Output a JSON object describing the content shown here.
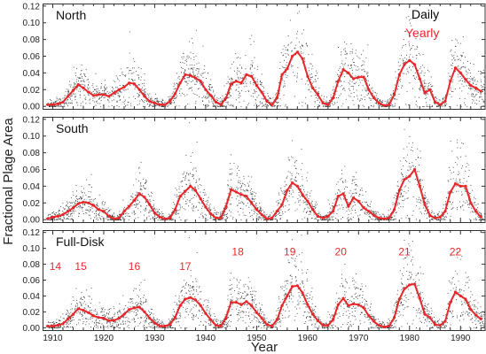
{
  "chart_data": {
    "type": "scatter",
    "xlabel": "Year",
    "ylabel": "Fractional Plage Area",
    "xlim": [
      1908,
      1995
    ],
    "x_ticks": [
      1910,
      1920,
      1930,
      1940,
      1950,
      1960,
      1970,
      1980,
      1990
    ],
    "x_tick_labels": [
      "1910",
      "1920",
      "1930",
      "1940",
      "1950",
      "1960",
      "1970",
      "1980",
      "1990"
    ],
    "ylim": [
      -0.003,
      0.123
    ],
    "y_ticks": [
      0.0,
      0.02,
      0.04,
      0.06,
      0.08,
      0.1,
      0.12
    ],
    "y_tick_labels": [
      "0.00",
      "0.02",
      "0.04",
      "0.06",
      "0.08",
      "0.10",
      "0.12"
    ],
    "grid": false,
    "legend_position": "top-right",
    "legend": [
      {
        "label": "Daily",
        "color": "#000000"
      },
      {
        "label": "Yearly",
        "color": "#e8272b"
      }
    ],
    "colors": {
      "daily": "#333333",
      "yearly": "#e8272b",
      "cycle_label": "#e8272b"
    },
    "yearly_x": [
      1909,
      1910,
      1911,
      1912,
      1913,
      1914,
      1915,
      1916,
      1917,
      1918,
      1919,
      1920,
      1921,
      1922,
      1923,
      1924,
      1925,
      1926,
      1927,
      1928,
      1929,
      1930,
      1931,
      1932,
      1933,
      1934,
      1935,
      1936,
      1937,
      1938,
      1939,
      1940,
      1941,
      1942,
      1943,
      1944,
      1945,
      1946,
      1947,
      1948,
      1949,
      1950,
      1951,
      1952,
      1953,
      1954,
      1955,
      1956,
      1957,
      1958,
      1959,
      1960,
      1961,
      1962,
      1963,
      1964,
      1965,
      1966,
      1967,
      1968,
      1969,
      1970,
      1971,
      1972,
      1973,
      1974,
      1975,
      1976,
      1977,
      1978,
      1979,
      1980,
      1981,
      1982,
      1983,
      1984,
      1985,
      1986,
      1987,
      1988,
      1989,
      1990,
      1991,
      1992,
      1993,
      1994
    ],
    "panels": [
      {
        "title": "North",
        "yearly_values": [
          0.002,
          0.002,
          0.003,
          0.005,
          0.012,
          0.019,
          0.026,
          0.022,
          0.017,
          0.013,
          0.014,
          0.014,
          0.012,
          0.016,
          0.02,
          0.023,
          0.028,
          0.027,
          0.02,
          0.012,
          0.006,
          0.004,
          0.002,
          0.002,
          0.006,
          0.015,
          0.028,
          0.038,
          0.037,
          0.034,
          0.03,
          0.02,
          0.013,
          0.005,
          0.002,
          0.01,
          0.027,
          0.03,
          0.028,
          0.038,
          0.036,
          0.025,
          0.017,
          0.006,
          0.002,
          0.01,
          0.038,
          0.045,
          0.06,
          0.065,
          0.057,
          0.036,
          0.022,
          0.014,
          0.004,
          0.002,
          0.01,
          0.03,
          0.044,
          0.04,
          0.033,
          0.035,
          0.035,
          0.02,
          0.01,
          0.004,
          0.001,
          0.002,
          0.014,
          0.038,
          0.05,
          0.055,
          0.05,
          0.033,
          0.016,
          0.02,
          0.005,
          0.002,
          0.006,
          0.03,
          0.046,
          0.04,
          0.032,
          0.025,
          0.022,
          0.018
        ]
      },
      {
        "title": "South",
        "yearly_values": [
          0.001,
          0.003,
          0.004,
          0.006,
          0.01,
          0.014,
          0.019,
          0.021,
          0.02,
          0.017,
          0.012,
          0.01,
          0.004,
          0.001,
          0.002,
          0.01,
          0.016,
          0.023,
          0.031,
          0.027,
          0.018,
          0.008,
          0.003,
          0.001,
          0.002,
          0.012,
          0.028,
          0.034,
          0.04,
          0.035,
          0.025,
          0.015,
          0.007,
          0.002,
          0.002,
          0.016,
          0.036,
          0.033,
          0.03,
          0.028,
          0.02,
          0.012,
          0.006,
          0.001,
          0.002,
          0.01,
          0.018,
          0.035,
          0.044,
          0.04,
          0.03,
          0.022,
          0.012,
          0.004,
          0.002,
          0.004,
          0.01,
          0.028,
          0.031,
          0.016,
          0.026,
          0.022,
          0.014,
          0.01,
          0.005,
          0.002,
          0.001,
          0.002,
          0.012,
          0.035,
          0.048,
          0.052,
          0.06,
          0.04,
          0.018,
          0.005,
          0.002,
          0.003,
          0.01,
          0.033,
          0.043,
          0.04,
          0.04,
          0.02,
          0.01,
          0.003
        ]
      },
      {
        "title": "Full-Disk",
        "yearly_values": [
          0.002,
          0.002,
          0.003,
          0.005,
          0.011,
          0.017,
          0.024,
          0.022,
          0.019,
          0.015,
          0.013,
          0.012,
          0.009,
          0.009,
          0.012,
          0.017,
          0.023,
          0.025,
          0.026,
          0.02,
          0.012,
          0.006,
          0.002,
          0.002,
          0.004,
          0.013,
          0.028,
          0.036,
          0.038,
          0.035,
          0.028,
          0.018,
          0.01,
          0.003,
          0.002,
          0.013,
          0.032,
          0.032,
          0.029,
          0.033,
          0.028,
          0.019,
          0.012,
          0.004,
          0.002,
          0.01,
          0.028,
          0.04,
          0.052,
          0.053,
          0.044,
          0.029,
          0.017,
          0.009,
          0.003,
          0.003,
          0.01,
          0.029,
          0.037,
          0.028,
          0.03,
          0.029,
          0.025,
          0.015,
          0.008,
          0.003,
          0.001,
          0.002,
          0.013,
          0.036,
          0.049,
          0.054,
          0.055,
          0.037,
          0.017,
          0.013,
          0.004,
          0.003,
          0.008,
          0.032,
          0.045,
          0.04,
          0.036,
          0.023,
          0.016,
          0.011
        ]
      }
    ],
    "cycle_labels": [
      {
        "text": "14",
        "x": 1910.5,
        "y": 0.073
      },
      {
        "text": "15",
        "x": 1915.5,
        "y": 0.073
      },
      {
        "text": "16",
        "x": 1926.0,
        "y": 0.073
      },
      {
        "text": "17",
        "x": 1936.0,
        "y": 0.073
      },
      {
        "text": "18",
        "x": 1946.3,
        "y": 0.091
      },
      {
        "text": "19",
        "x": 1956.5,
        "y": 0.091
      },
      {
        "text": "20",
        "x": 1966.5,
        "y": 0.091
      },
      {
        "text": "21",
        "x": 1979.0,
        "y": 0.091
      },
      {
        "text": "22",
        "x": 1989.0,
        "y": 0.091
      }
    ]
  }
}
